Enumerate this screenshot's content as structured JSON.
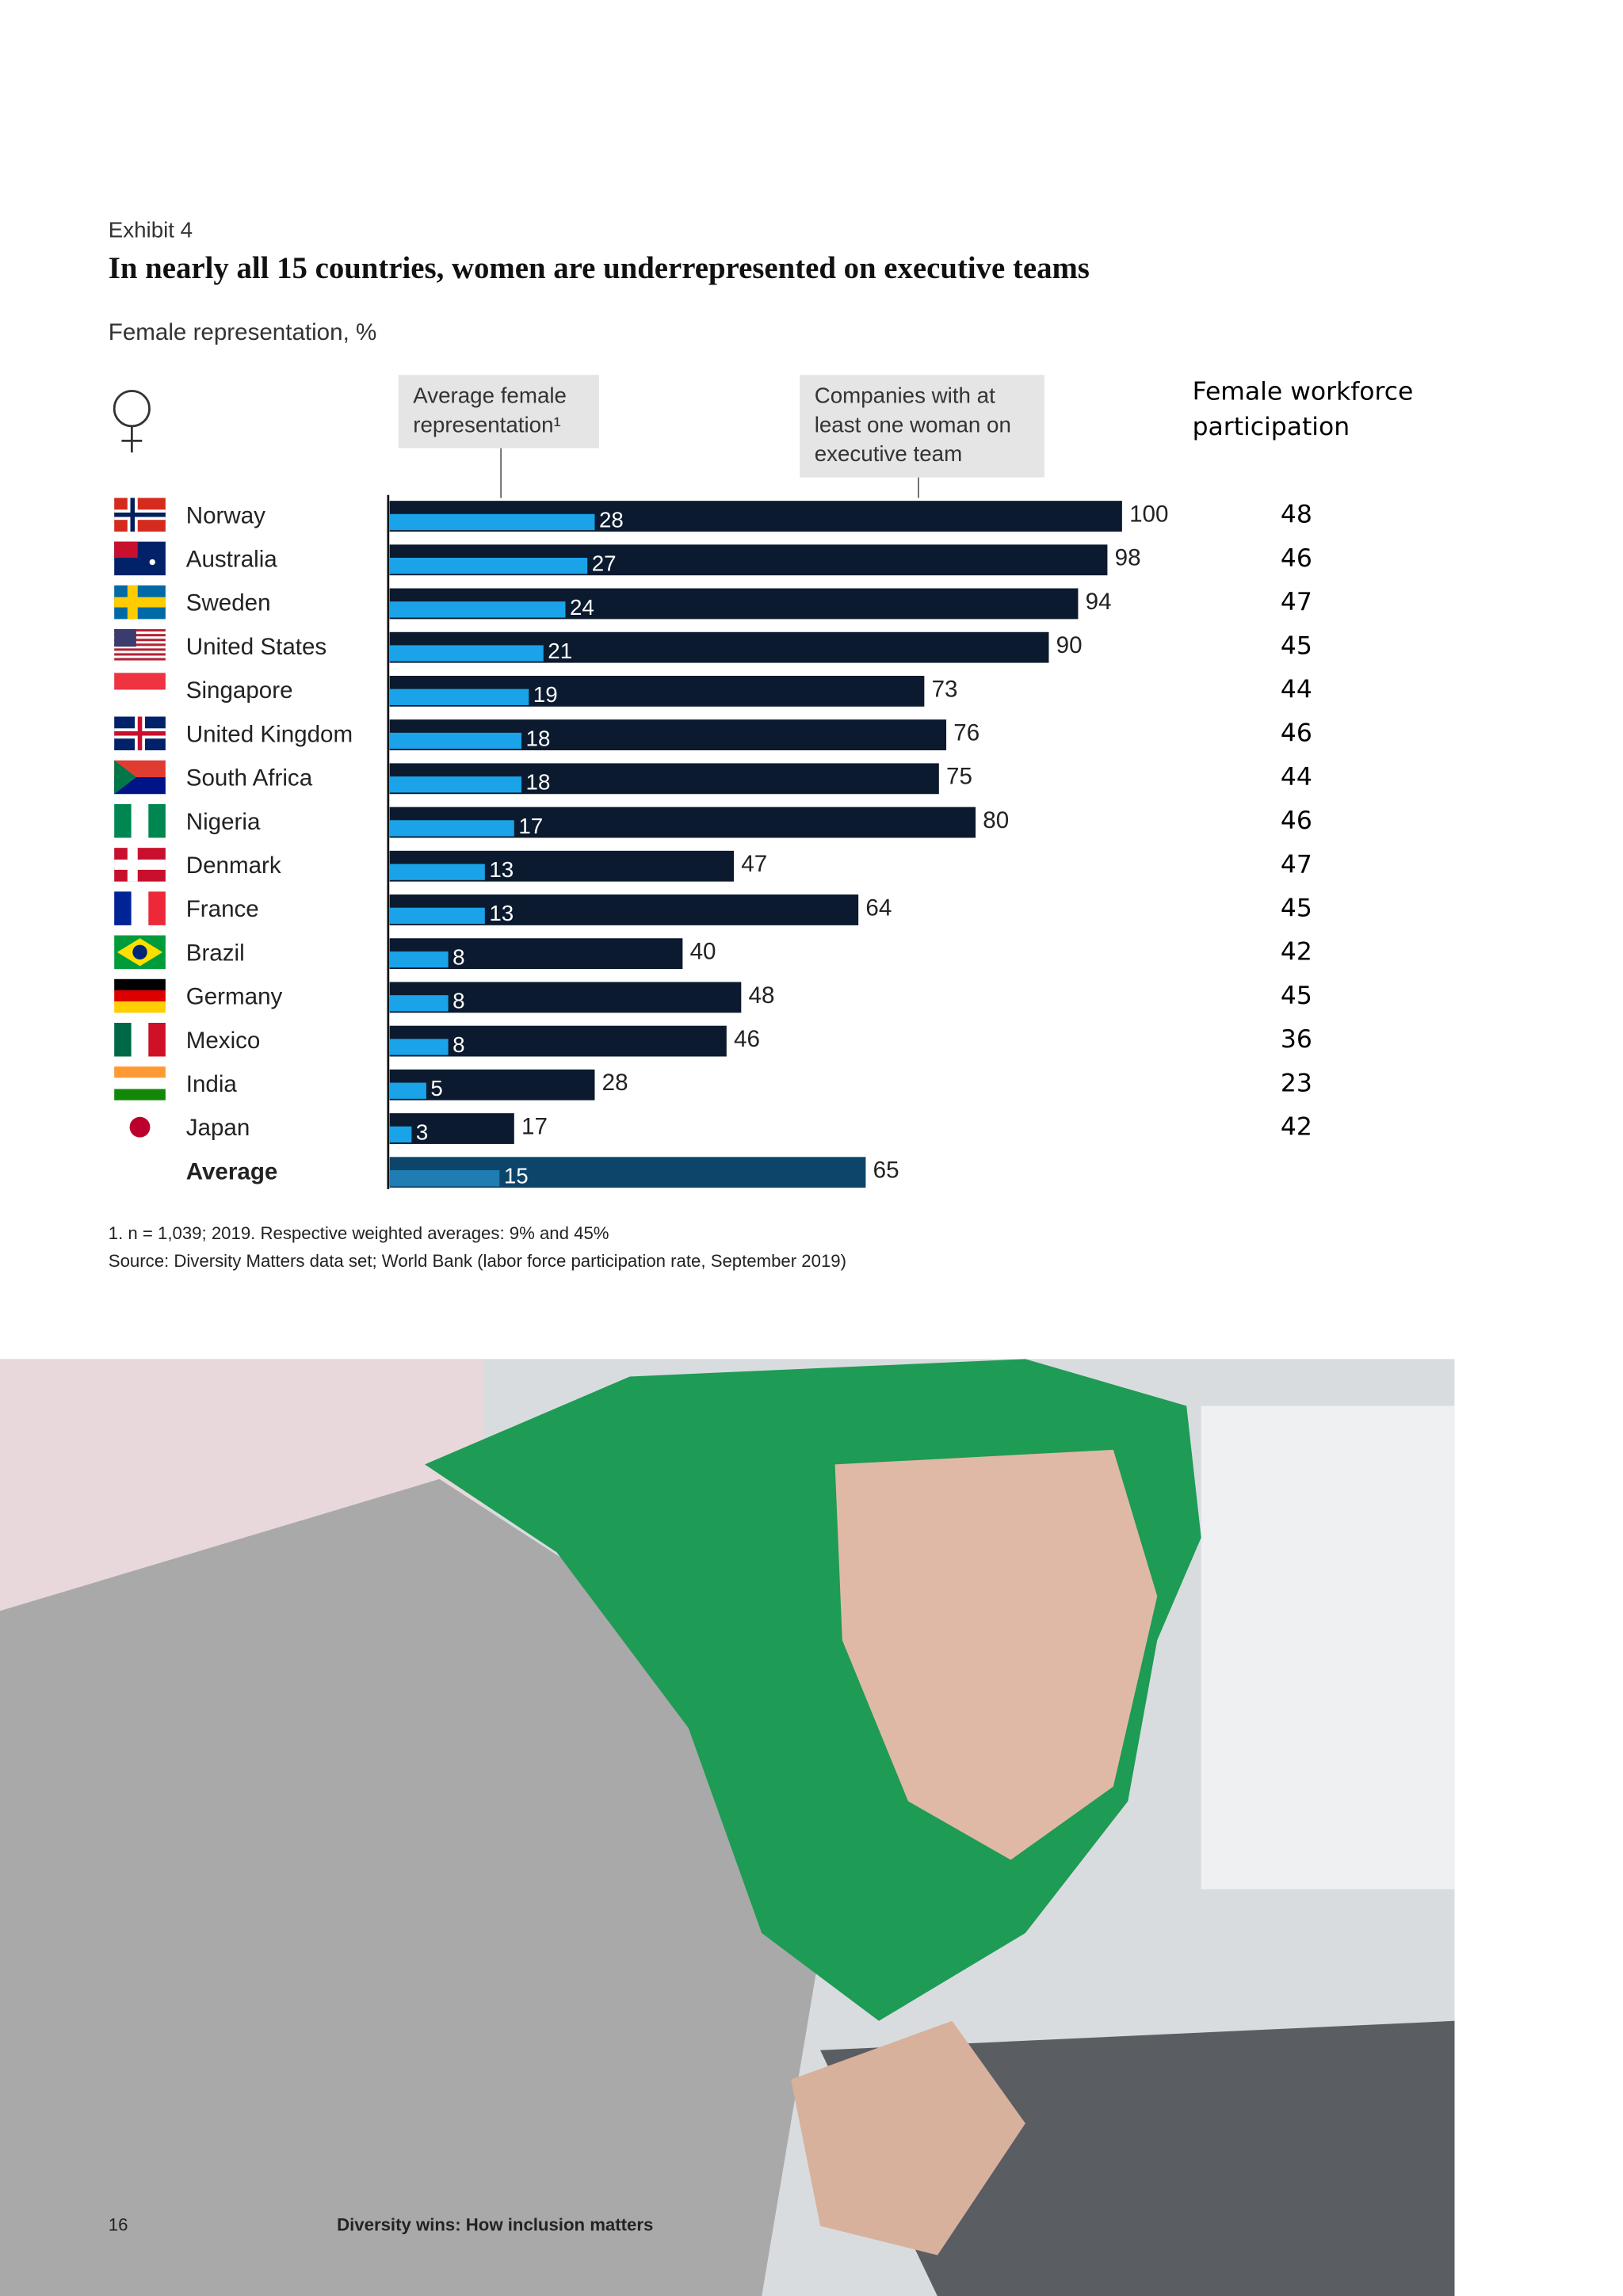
{
  "exhibit": "Exhibit 4",
  "chart_data": {
    "type": "bar",
    "title": "In nearly all 15 countries, women are underrepresented on executive teams",
    "subtitle": "Female representation, %",
    "categories": [
      "Norway",
      "Australia",
      "Sweden",
      "United States",
      "Singapore",
      "United Kingdom",
      "South Africa",
      "Nigeria",
      "Denmark",
      "France",
      "Brazil",
      "Germany",
      "Mexico",
      "India",
      "Japan",
      "Average"
    ],
    "series": [
      {
        "name": "Companies with at least one woman on executive team",
        "color": "#0b1a2e",
        "values": [
          100,
          98,
          94,
          90,
          73,
          76,
          75,
          80,
          47,
          64,
          40,
          48,
          46,
          28,
          17,
          65
        ]
      },
      {
        "name": "Average female representation¹",
        "color": "#1aa3e8",
        "values": [
          28,
          27,
          24,
          21,
          19,
          18,
          18,
          17,
          13,
          13,
          8,
          8,
          8,
          5,
          3,
          15
        ]
      }
    ],
    "average_colors": [
      "#0d456a",
      "#1f7db3"
    ],
    "xlim": [
      0,
      100
    ],
    "participation": {
      "title": "Female workforce participation",
      "values": [
        48,
        46,
        47,
        45,
        44,
        46,
        44,
        46,
        47,
        45,
        42,
        45,
        36,
        23,
        42,
        null
      ]
    },
    "footnote": "1.     n = 1,039; 2019. Respective weighted averages: 9% and 45%",
    "source": "Source: Diversity Matters data set; World Bank (labor force participation rate, September 2019)"
  },
  "page_number": "16",
  "footer": "Diversity wins: How inclusion matters"
}
